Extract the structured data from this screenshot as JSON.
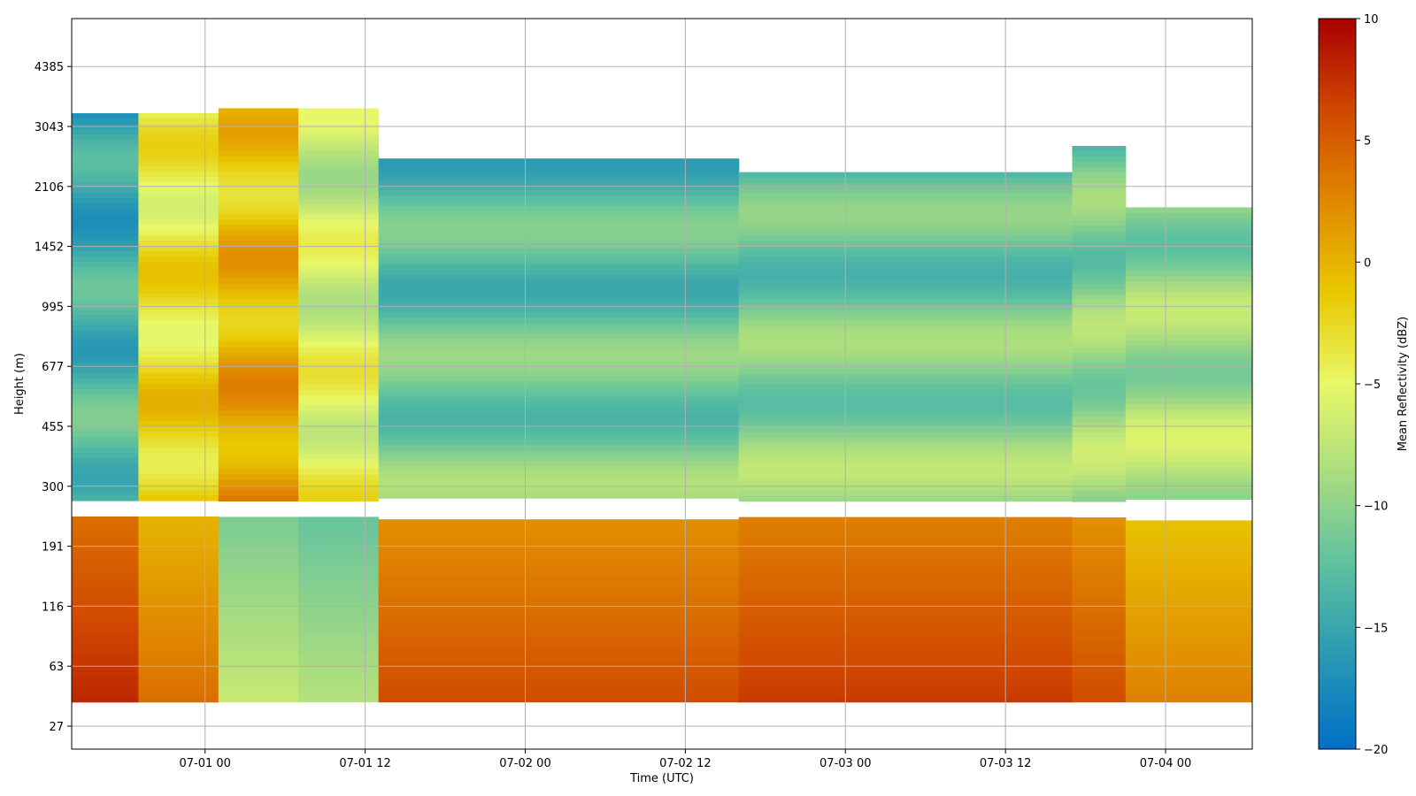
{
  "chart_data": {
    "type": "heatmap",
    "title": "",
    "xlabel": "Time (UTC)",
    "ylabel": "Height (m)",
    "x_ticks": [
      "07-01 00",
      "07-01 12",
      "07-02 00",
      "07-02 12",
      "07-03 00",
      "07-03 12",
      "07-04 00"
    ],
    "y_ticks": [
      "27",
      "63",
      "116",
      "191",
      "300",
      "455",
      "677",
      "995",
      "1452",
      "2106",
      "3043",
      "4385"
    ],
    "x_range": [
      "06-30 14:00",
      "07-04 06:30"
    ],
    "grid": true,
    "colormap": [
      "#0070c8",
      "#2898b4",
      "#5cc0a0",
      "#a8dc80",
      "#e8f868",
      "#e8c800",
      "#e08800",
      "#d04800",
      "#a80000"
    ],
    "colorbar": {
      "label": "Mean Reflectivity (dBZ)",
      "range": [
        -20,
        10
      ],
      "ticks": [
        "10",
        "5",
        "0",
        "−5",
        "−10",
        "−15",
        "−20"
      ]
    },
    "data_gap_height_range_m": [
      "235",
      "270"
    ],
    "segments": [
      {
        "start": "06-30 14:00",
        "end": "06-30 19:00",
        "cloud_top_m": "3300",
        "low_dbz": 8,
        "upper_dbz": -14
      },
      {
        "start": "06-30 19:00",
        "end": "07-01 01:00",
        "cloud_top_m": "3300",
        "low_dbz": 4,
        "upper_dbz": -3
      },
      {
        "start": "07-01 01:00",
        "end": "07-01 07:00",
        "cloud_top_m": "3400",
        "low_dbz": -7,
        "upper_dbz": 0
      },
      {
        "start": "07-01 07:00",
        "end": "07-01 13:00",
        "cloud_top_m": "3400",
        "low_dbz": -8,
        "upper_dbz": -6
      },
      {
        "start": "07-01 13:00",
        "end": "07-02 16:00",
        "cloud_top_m": "2500",
        "low_dbz": 6,
        "upper_dbz": -12
      },
      {
        "start": "07-02 16:00",
        "end": "07-03 17:00",
        "cloud_top_m": "2300",
        "low_dbz": 7,
        "upper_dbz": -11
      },
      {
        "start": "07-03 17:00",
        "end": "07-03 21:00",
        "cloud_top_m": "2700",
        "low_dbz": 6,
        "upper_dbz": -10
      },
      {
        "start": "07-03 21:00",
        "end": "07-04 06:30",
        "cloud_top_m": "1850",
        "low_dbz": 3,
        "upper_dbz": -9
      }
    ]
  }
}
